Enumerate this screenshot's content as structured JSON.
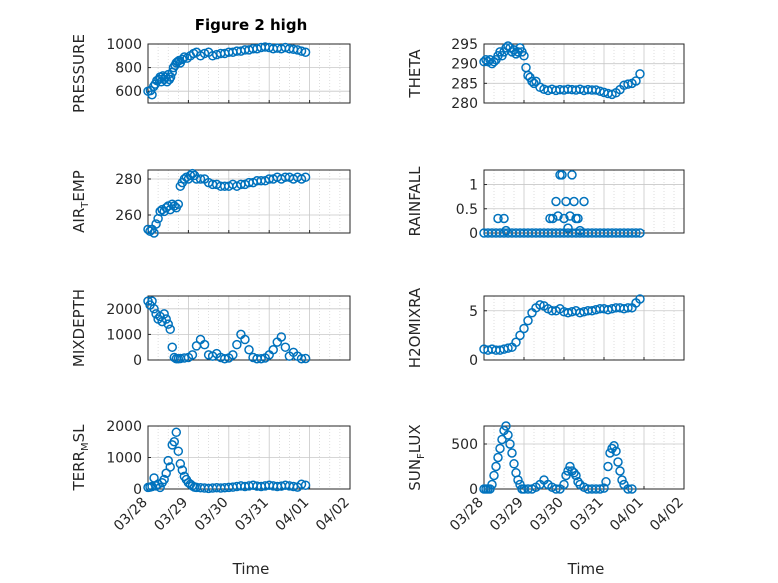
{
  "figure_title": "Figure 2 high",
  "x_axis_label": "Time",
  "x_tick_labels": [
    "03/28",
    "03/29",
    "03/30",
    "03/31",
    "04/01",
    "04/02"
  ],
  "colors": {
    "marker": "#0072bd",
    "axis": "#262626",
    "grid": "#c8c8c8",
    "background": "#ffffff"
  },
  "chart_data": [
    {
      "type": "scatter",
      "name": "PRESSURE",
      "title": "Figure 2 high",
      "ylabel": {
        "main": "PRESSURE",
        "sub": "",
        "tail": ""
      },
      "ylim": [
        500,
        1000
      ],
      "yticks": [
        600,
        800,
        1000
      ],
      "xlim": [
        0,
        5
      ],
      "x": [
        0.0,
        0.06,
        0.1,
        0.14,
        0.18,
        0.22,
        0.27,
        0.3,
        0.33,
        0.37,
        0.4,
        0.43,
        0.47,
        0.5,
        0.53,
        0.56,
        0.6,
        0.63,
        0.67,
        0.7,
        0.73,
        0.77,
        0.8,
        0.85,
        0.9,
        0.97,
        1.05,
        1.13,
        1.2,
        1.3,
        1.4,
        1.5,
        1.6,
        1.7,
        1.8,
        1.9,
        2.0,
        2.1,
        2.2,
        2.3,
        2.4,
        2.5,
        2.6,
        2.7,
        2.8,
        2.9,
        3.0,
        3.1,
        3.2,
        3.3,
        3.4,
        3.5,
        3.6,
        3.7,
        3.8,
        3.9
      ],
      "y": [
        600,
        605,
        570,
        640,
        660,
        690,
        700,
        720,
        680,
        730,
        700,
        720,
        680,
        740,
        700,
        720,
        760,
        800,
        820,
        840,
        850,
        860,
        840,
        870,
        890,
        880,
        900,
        920,
        930,
        900,
        920,
        930,
        900,
        910,
        920,
        920,
        930,
        930,
        940,
        940,
        950,
        950,
        960,
        960,
        970,
        975,
        970,
        960,
        965,
        960,
        970,
        960,
        955,
        950,
        940,
        930
      ]
    },
    {
      "type": "scatter",
      "name": "THETA",
      "ylabel": {
        "main": "THETA",
        "sub": "",
        "tail": ""
      },
      "ylim": [
        280,
        295
      ],
      "yticks": [
        280,
        285,
        290,
        295
      ],
      "xlim": [
        0,
        5
      ],
      "x": [
        0.0,
        0.05,
        0.1,
        0.15,
        0.2,
        0.25,
        0.3,
        0.35,
        0.4,
        0.45,
        0.5,
        0.55,
        0.6,
        0.65,
        0.7,
        0.75,
        0.8,
        0.85,
        0.9,
        0.95,
        1.0,
        1.05,
        1.1,
        1.15,
        1.2,
        1.25,
        1.3,
        1.4,
        1.5,
        1.6,
        1.7,
        1.8,
        1.9,
        2.0,
        2.1,
        2.2,
        2.3,
        2.4,
        2.5,
        2.6,
        2.7,
        2.8,
        2.9,
        3.0,
        3.1,
        3.2,
        3.3,
        3.4,
        3.5,
        3.6,
        3.7,
        3.8,
        3.9
      ],
      "y": [
        290.5,
        291,
        290.5,
        291,
        290,
        290.5,
        291,
        292,
        293,
        292,
        293,
        294,
        294.5,
        294,
        293,
        293.5,
        292.5,
        293,
        294,
        293,
        292,
        289,
        287,
        286.5,
        285.5,
        285,
        285.5,
        284,
        283.5,
        283.2,
        283.5,
        283.2,
        283.4,
        283.3,
        283.5,
        283.4,
        283.3,
        283.5,
        283.2,
        283.4,
        283.3,
        283.3,
        283.0,
        282.7,
        282.4,
        282.2,
        282.6,
        283.4,
        284.5,
        284.8,
        285.0,
        285.6,
        287.4
      ]
    },
    {
      "type": "scatter",
      "name": "AIR_TEMP",
      "ylabel": {
        "main": "AIR",
        "sub": "T",
        "tail": "EMP"
      },
      "ylim": [
        250,
        285
      ],
      "yticks": [
        260,
        280
      ],
      "xlim": [
        0,
        5
      ],
      "x": [
        0.0,
        0.05,
        0.1,
        0.15,
        0.2,
        0.25,
        0.3,
        0.35,
        0.4,
        0.45,
        0.5,
        0.55,
        0.6,
        0.65,
        0.7,
        0.75,
        0.8,
        0.85,
        0.9,
        0.95,
        1.0,
        1.05,
        1.1,
        1.15,
        1.2,
        1.3,
        1.4,
        1.5,
        1.6,
        1.7,
        1.8,
        1.9,
        2.0,
        2.1,
        2.2,
        2.3,
        2.4,
        2.5,
        2.6,
        2.7,
        2.8,
        2.9,
        3.0,
        3.1,
        3.2,
        3.3,
        3.4,
        3.5,
        3.6,
        3.7,
        3.8,
        3.9
      ],
      "y": [
        252,
        251,
        252,
        250,
        255,
        258,
        262,
        263,
        262,
        264,
        265,
        263,
        266,
        265,
        264,
        266,
        276,
        278,
        280,
        281,
        280,
        282,
        283,
        282,
        280,
        280,
        280,
        278,
        277,
        277,
        276,
        276,
        276,
        277,
        276,
        277,
        277,
        278,
        278,
        279,
        279,
        279,
        280,
        280,
        281,
        280,
        281,
        281,
        280,
        281,
        280,
        281
      ]
    },
    {
      "type": "scatter",
      "name": "RAINFALL",
      "ylabel": {
        "main": "RAINFALL",
        "sub": "",
        "tail": ""
      },
      "ylim": [
        0,
        1.3
      ],
      "yticks": [
        0,
        0.5,
        1
      ],
      "ytick_labels": [
        "0",
        "0.5",
        "1"
      ],
      "xlim": [
        0,
        5
      ],
      "x": [
        0.0,
        0.1,
        0.2,
        0.3,
        0.4,
        0.5,
        0.6,
        0.7,
        0.8,
        0.9,
        1.0,
        1.1,
        1.2,
        1.3,
        1.4,
        1.5,
        1.6,
        1.7,
        1.8,
        1.9,
        2.0,
        2.1,
        2.2,
        2.3,
        2.4,
        2.5,
        2.6,
        2.7,
        2.8,
        2.9,
        3.0,
        3.1,
        3.2,
        3.3,
        3.4,
        3.5,
        3.6,
        3.7,
        3.8,
        3.9,
        0.35,
        0.5,
        0.55,
        1.65,
        1.72,
        1.8,
        1.85,
        1.9,
        1.95,
        2.0,
        2.05,
        2.1,
        2.15,
        2.2,
        2.25,
        2.3,
        2.35,
        2.4,
        2.5
      ],
      "y": [
        0,
        0,
        0,
        0,
        0,
        0,
        0,
        0,
        0,
        0,
        0,
        0,
        0,
        0,
        0,
        0,
        0,
        0,
        0,
        0,
        0,
        0,
        0,
        0,
        0,
        0,
        0,
        0,
        0,
        0,
        0,
        0,
        0,
        0,
        0,
        0,
        0,
        0,
        0,
        0,
        0.3,
        0.3,
        0.05,
        0.3,
        0.3,
        0.65,
        0.35,
        1.2,
        1.2,
        0.3,
        0.65,
        0.1,
        0.35,
        1.2,
        0.65,
        0.3,
        0.3,
        0.05,
        0.65
      ]
    },
    {
      "type": "scatter",
      "name": "MIXDEPTH",
      "ylabel": {
        "main": "MIXDEPTH",
        "sub": "",
        "tail": ""
      },
      "ylim": [
        0,
        2500
      ],
      "yticks": [
        0,
        1000,
        2000
      ],
      "xlim": [
        0,
        5
      ],
      "x": [
        0.0,
        0.05,
        0.1,
        0.15,
        0.2,
        0.25,
        0.3,
        0.35,
        0.4,
        0.45,
        0.5,
        0.55,
        0.6,
        0.65,
        0.7,
        0.75,
        0.8,
        0.9,
        1.0,
        1.1,
        1.2,
        1.3,
        1.4,
        1.5,
        1.6,
        1.7,
        1.8,
        1.9,
        2.0,
        2.1,
        2.2,
        2.3,
        2.4,
        2.5,
        2.6,
        2.7,
        2.8,
        2.9,
        3.0,
        3.1,
        3.2,
        3.3,
        3.4,
        3.5,
        3.6,
        3.7,
        3.8,
        3.9
      ],
      "y": [
        2300,
        2150,
        2300,
        2000,
        1800,
        1600,
        1700,
        1500,
        1800,
        1600,
        1400,
        1200,
        500,
        100,
        50,
        50,
        60,
        80,
        100,
        200,
        550,
        800,
        600,
        200,
        150,
        250,
        100,
        50,
        80,
        200,
        600,
        1000,
        800,
        400,
        100,
        50,
        50,
        80,
        200,
        400,
        700,
        900,
        500,
        150,
        300,
        150,
        50,
        60
      ]
    },
    {
      "type": "scatter",
      "name": "H2OMIXRA",
      "ylabel": {
        "main": "H2OMIXRA",
        "sub": "",
        "tail": ""
      },
      "ylim": [
        0,
        6.5
      ],
      "yticks": [
        0,
        5
      ],
      "xlim": [
        0,
        5
      ],
      "x": [
        0.0,
        0.1,
        0.2,
        0.3,
        0.4,
        0.5,
        0.6,
        0.7,
        0.8,
        0.9,
        1.0,
        1.1,
        1.2,
        1.3,
        1.4,
        1.5,
        1.6,
        1.7,
        1.8,
        1.9,
        2.0,
        2.1,
        2.2,
        2.3,
        2.4,
        2.5,
        2.6,
        2.7,
        2.8,
        2.9,
        3.0,
        3.1,
        3.2,
        3.3,
        3.4,
        3.5,
        3.6,
        3.7,
        3.8,
        3.9
      ],
      "y": [
        1.1,
        1.0,
        1.1,
        1.0,
        1.0,
        1.1,
        1.2,
        1.3,
        1.8,
        2.5,
        3.2,
        4.0,
        4.8,
        5.3,
        5.6,
        5.5,
        5.2,
        5.0,
        5.0,
        5.2,
        4.9,
        4.8,
        4.9,
        5.0,
        4.8,
        4.9,
        5.0,
        5.0,
        5.1,
        5.2,
        5.2,
        5.1,
        5.2,
        5.3,
        5.3,
        5.2,
        5.3,
        5.3,
        5.8,
        6.2
      ]
    },
    {
      "type": "scatter",
      "name": "TERR_MSL",
      "ylabel": {
        "main": "TERR",
        "sub": "M",
        "tail": "SL"
      },
      "ylim": [
        0,
        2000
      ],
      "yticks": [
        0,
        1000,
        2000
      ],
      "xlim": [
        0,
        5
      ],
      "x": [
        0.0,
        0.05,
        0.1,
        0.15,
        0.2,
        0.25,
        0.3,
        0.35,
        0.4,
        0.45,
        0.5,
        0.55,
        0.6,
        0.65,
        0.7,
        0.75,
        0.8,
        0.85,
        0.9,
        0.95,
        1.0,
        1.05,
        1.1,
        1.15,
        1.2,
        1.3,
        1.4,
        1.5,
        1.6,
        1.7,
        1.8,
        1.9,
        2.0,
        2.1,
        2.2,
        2.3,
        2.4,
        2.5,
        2.6,
        2.7,
        2.8,
        2.9,
        3.0,
        3.1,
        3.2,
        3.3,
        3.4,
        3.5,
        3.6,
        3.7,
        3.8,
        3.9
      ],
      "y": [
        50,
        60,
        80,
        350,
        100,
        150,
        50,
        200,
        300,
        500,
        900,
        700,
        1400,
        1500,
        1800,
        1200,
        800,
        600,
        400,
        300,
        200,
        150,
        100,
        60,
        50,
        40,
        30,
        20,
        30,
        40,
        30,
        40,
        50,
        60,
        80,
        100,
        80,
        100,
        120,
        90,
        80,
        100,
        120,
        100,
        80,
        90,
        120,
        100,
        80,
        60,
        150,
        120
      ]
    },
    {
      "type": "scatter",
      "name": "SUN_FLUX",
      "ylabel": {
        "main": "SUN",
        "sub": "F",
        "tail": "LUX"
      },
      "ylim": [
        0,
        700
      ],
      "yticks": [
        0,
        500
      ],
      "xlim": [
        0,
        5
      ],
      "x": [
        0.0,
        0.05,
        0.1,
        0.15,
        0.2,
        0.25,
        0.3,
        0.35,
        0.4,
        0.45,
        0.5,
        0.55,
        0.6,
        0.65,
        0.7,
        0.75,
        0.8,
        0.85,
        0.9,
        0.95,
        1.0,
        1.1,
        1.2,
        1.3,
        1.4,
        1.5,
        1.6,
        1.7,
        1.8,
        1.9,
        2.0,
        2.05,
        2.1,
        2.15,
        2.2,
        2.25,
        2.3,
        2.35,
        2.4,
        2.5,
        2.6,
        2.7,
        2.8,
        2.9,
        3.0,
        3.05,
        3.1,
        3.15,
        3.2,
        3.25,
        3.3,
        3.35,
        3.4,
        3.45,
        3.5,
        3.6,
        3.7
      ],
      "y": [
        0,
        0,
        0,
        0,
        50,
        150,
        250,
        350,
        450,
        550,
        650,
        700,
        600,
        500,
        400,
        280,
        180,
        100,
        50,
        0,
        0,
        0,
        0,
        20,
        50,
        100,
        50,
        20,
        0,
        0,
        50,
        150,
        200,
        250,
        200,
        180,
        150,
        80,
        50,
        20,
        0,
        0,
        0,
        0,
        10,
        80,
        250,
        400,
        450,
        480,
        420,
        300,
        200,
        100,
        50,
        0,
        0
      ]
    }
  ]
}
